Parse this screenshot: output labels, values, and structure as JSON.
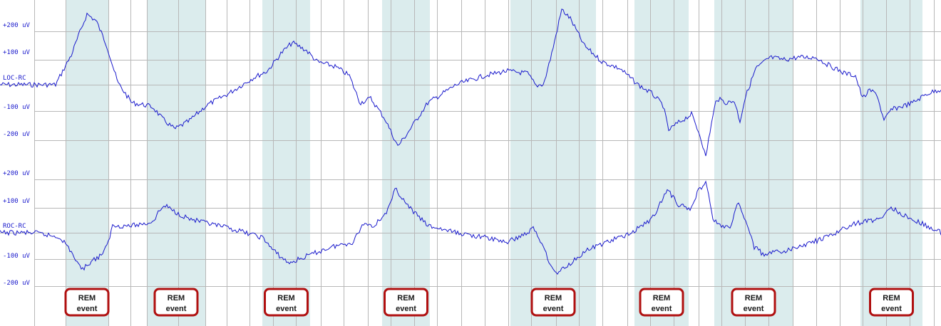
{
  "chart_data": {
    "type": "line",
    "colors": {
      "trace": "#1a1acc",
      "rem_band": "#dbeced",
      "event_border": "#b01010",
      "grid": "#b8b8b8",
      "label": "#1a1acc"
    },
    "channels": [
      {
        "name": "LOC-RC",
        "amplitude_labels": [
          "+200 uV",
          "+100 uV",
          "-100 uV",
          "-200 uV"
        ],
        "x": [
          0,
          48,
          78,
          88,
          100,
          112,
          122,
          135,
          150,
          165,
          185,
          205,
          215,
          228,
          245,
          265,
          290,
          320,
          355,
          375,
          395,
          410,
          430,
          445,
          470,
          490,
          505,
          520,
          540,
          558,
          570,
          600,
          640,
          680,
          710,
          740,
          752,
          763,
          775,
          788,
          800,
          820,
          845,
          870,
          895,
          915,
          930,
          938,
          950,
          970,
          983,
          990,
          995,
          1005,
          1020,
          1030,
          1038,
          1045,
          1060,
          1080,
          1100,
          1120,
          1145,
          1160,
          1185,
          1200,
          1210,
          1220,
          1230,
          1240,
          1250,
          1260,
          1280,
          1300,
          1320
        ],
        "values": [
          0,
          0,
          0,
          60,
          130,
          230,
          310,
          280,
          170,
          10,
          -80,
          -90,
          -100,
          -150,
          -195,
          -160,
          -90,
          -40,
          30,
          60,
          140,
          185,
          150,
          100,
          80,
          40,
          -80,
          -60,
          -150,
          -270,
          -220,
          -80,
          0,
          40,
          60,
          50,
          -5,
          5,
          150,
          330,
          290,
          170,
          100,
          70,
          0,
          -40,
          -90,
          -200,
          -170,
          -130,
          -230,
          -320,
          -220,
          -60,
          -80,
          -70,
          -160,
          -60,
          70,
          120,
          110,
          120,
          120,
          90,
          50,
          40,
          -60,
          -25,
          -40,
          -160,
          -110,
          -100,
          -80,
          -40,
          -20
        ],
        "ylim": [
          -250,
          320
        ]
      },
      {
        "name": "ROC-RC",
        "amplitude_labels": [
          "+200 uV",
          "+100 uV",
          "-100 uV",
          "-200 uV"
        ],
        "x": [
          0,
          48,
          85,
          100,
          110,
          118,
          128,
          140,
          150,
          158,
          170,
          185,
          205,
          215,
          225,
          232,
          245,
          265,
          290,
          320,
          345,
          368,
          385,
          405,
          430,
          465,
          495,
          510,
          525,
          545,
          555,
          570,
          600,
          640,
          680,
          712,
          740,
          748,
          763,
          775,
          782,
          800,
          820,
          850,
          880,
          895,
          915,
          930,
          937,
          952,
          968,
          978,
          990,
          1000,
          1010,
          1025,
          1035,
          1045,
          1058,
          1070,
          1100,
          1130,
          1160,
          1185,
          1200,
          1220,
          1240,
          1250,
          1270,
          1300,
          1320
        ],
        "values": [
          0,
          0,
          -20,
          -80,
          -140,
          -150,
          -120,
          -100,
          -60,
          30,
          30,
          30,
          40,
          50,
          100,
          115,
          90,
          60,
          40,
          20,
          0,
          -20,
          -80,
          -130,
          -100,
          -60,
          -40,
          40,
          30,
          100,
          190,
          120,
          30,
          0,
          -20,
          -40,
          0,
          20,
          -60,
          -160,
          -170,
          -130,
          -80,
          -40,
          -10,
          20,
          60,
          150,
          180,
          120,
          100,
          170,
          220,
          60,
          30,
          20,
          130,
          60,
          -60,
          -90,
          -80,
          -50,
          -20,
          20,
          40,
          50,
          70,
          110,
          70,
          30,
          0
        ],
        "ylim": [
          -230,
          240
        ]
      }
    ],
    "rem_events": [
      {
        "label": "REM\nevent",
        "start": 92,
        "end": 152
      },
      {
        "label": "REM\nevent",
        "start": 206,
        "end": 288
      },
      {
        "label": "REM\nevent",
        "start": 368,
        "end": 435
      },
      {
        "label": "REM\nevent",
        "start": 536,
        "end": 603
      },
      {
        "label": "REM\nevent",
        "start": 716,
        "end": 836
      },
      {
        "label": "REM\nevent",
        "start": 890,
        "end": 966
      },
      {
        "label": "REM\nevent",
        "start": 1002,
        "end": 1112
      },
      {
        "label": "REM\nevent",
        "start": 1207,
        "end": 1294
      }
    ],
    "grid": true,
    "grid_lines_x": [
      48,
      92,
      152,
      183,
      206,
      250,
      288,
      318,
      350,
      383,
      415,
      450,
      482,
      516,
      548,
      581,
      613,
      647,
      680,
      713,
      745,
      780,
      812,
      845,
      880,
      912,
      945,
      980,
      1012,
      1045,
      1078,
      1112,
      1145,
      1178,
      1210,
      1243,
      1276,
      1310
    ]
  }
}
